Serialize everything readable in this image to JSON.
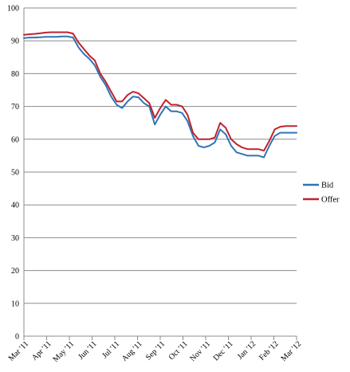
{
  "chart_data": {
    "type": "line",
    "title": "",
    "xlabel": "",
    "ylabel": "",
    "ylim": [
      0,
      100
    ],
    "y_ticks": [
      0,
      10,
      20,
      30,
      40,
      50,
      60,
      70,
      80,
      90,
      100
    ],
    "x_tick_labels": [
      "Mar '11",
      "Apr '11",
      "May '11",
      "Jun '11",
      "Jul '11",
      "Aug '11",
      "Sep '11",
      "Oct '11",
      "Nov '11",
      "Dec '11",
      "Jan '12",
      "Feb '12",
      "Mar '12"
    ],
    "grid": "horizontal",
    "legend_position": "right",
    "x": [
      "Mar '11",
      "",
      "",
      "",
      "Apr '11",
      "",
      "",
      "",
      "May '11",
      "",
      "",
      "",
      "Jun '11",
      "",
      "",
      "",
      "Jul '11",
      "",
      "",
      "",
      "Aug '11",
      "",
      "",
      "",
      "Sep '11",
      "",
      "",
      "",
      "Oct '11",
      "",
      "",
      "",
      "Nov '11",
      "",
      "",
      "",
      "Dec '11",
      "",
      "",
      "",
      "Jan '12",
      "",
      "",
      "",
      "Feb '12",
      "",
      "",
      "",
      "Mar '12",
      "",
      ""
    ],
    "series": [
      {
        "name": "Bid",
        "color": "#2e75b6",
        "values": [
          90.8,
          91.0,
          91.0,
          91.1,
          91.2,
          91.2,
          91.2,
          91.3,
          91.3,
          91.0,
          88.0,
          86.0,
          84.5,
          82.5,
          79.0,
          76.5,
          73.0,
          70.5,
          69.5,
          71.5,
          73.0,
          72.8,
          71.0,
          70.0,
          64.5,
          67.5,
          70.0,
          68.5,
          68.5,
          68.0,
          65.5,
          61.0,
          58.0,
          57.5,
          58.0,
          59.0,
          63.0,
          61.5,
          58.0,
          56.0,
          55.5,
          55.0,
          55.0,
          55.0,
          54.5,
          58.0,
          61.0,
          62.0,
          62.0,
          62.0,
          62.0
        ]
      },
      {
        "name": "Offer",
        "color": "#c0222e",
        "values": [
          91.8,
          92.0,
          92.1,
          92.3,
          92.5,
          92.6,
          92.6,
          92.6,
          92.6,
          92.2,
          89.5,
          87.5,
          85.5,
          84.0,
          80.0,
          77.5,
          74.5,
          71.5,
          71.5,
          73.5,
          74.5,
          74.0,
          72.5,
          71.0,
          66.5,
          69.5,
          72.0,
          70.5,
          70.5,
          70.0,
          67.5,
          62.0,
          60.0,
          60.0,
          60.0,
          60.5,
          65.0,
          63.5,
          60.0,
          58.5,
          57.5,
          57.0,
          57.0,
          57.0,
          56.5,
          59.5,
          63.0,
          63.8,
          64.0,
          64.0,
          64.0
        ]
      }
    ]
  }
}
